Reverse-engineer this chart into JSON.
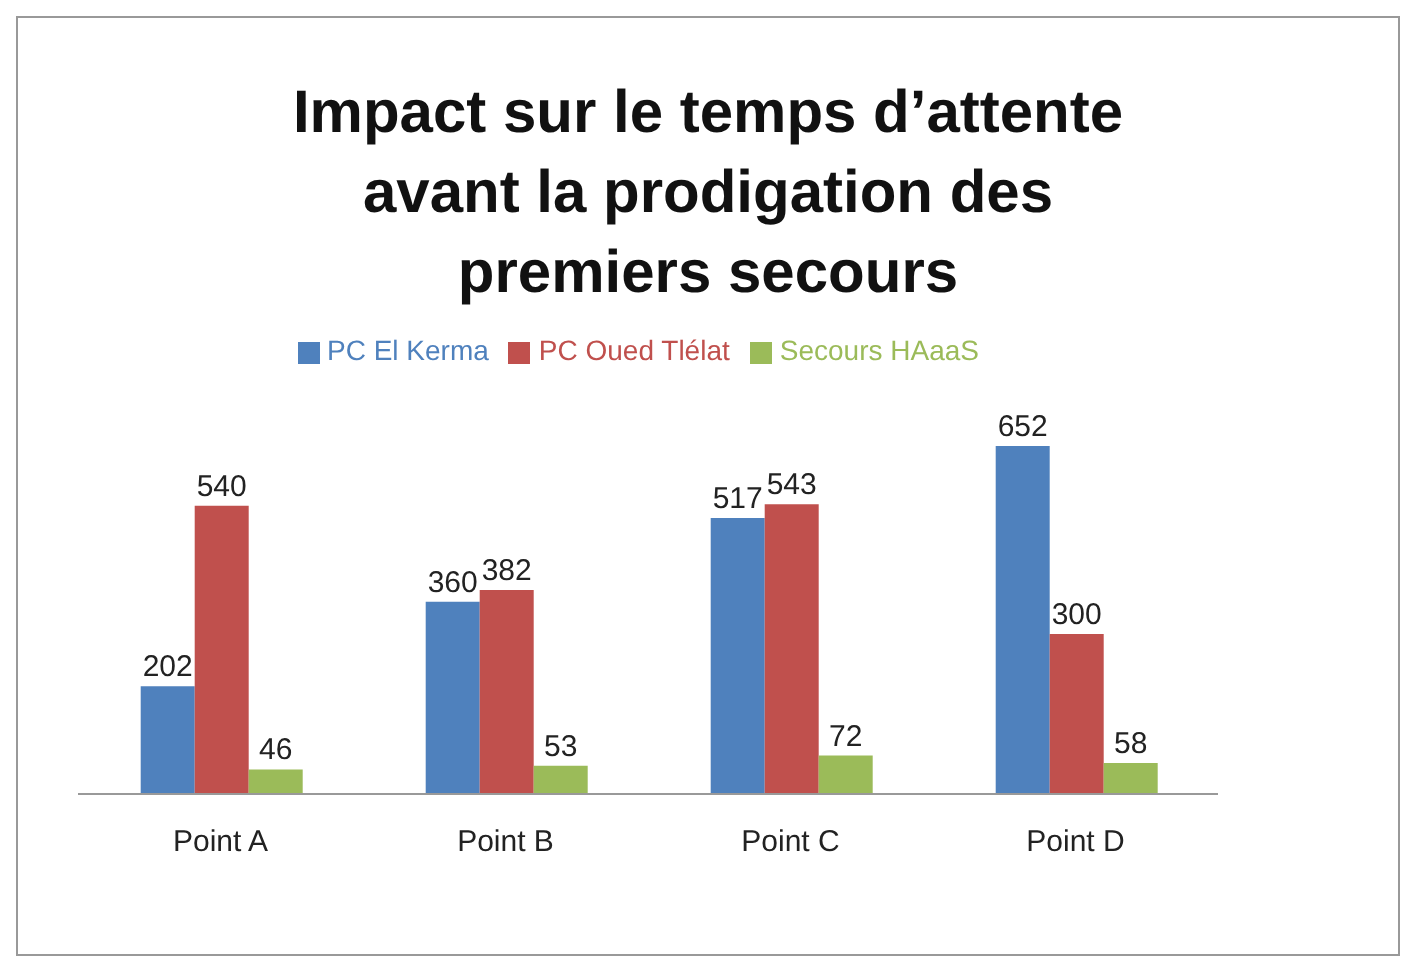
{
  "chart_data": {
    "type": "bar",
    "title": "Impact sur le temps d’attente avant la prodigation des premiers secours",
    "categories": [
      "Point A",
      "Point B",
      "Point C",
      "Point D"
    ],
    "series": [
      {
        "name": "PC El Kerma",
        "color": "#4f81bd",
        "values": [
          202,
          360,
          517,
          652
        ]
      },
      {
        "name": "PC Oued Tlélat",
        "color": "#c0504d",
        "values": [
          540,
          382,
          543,
          300
        ]
      },
      {
        "name": "Secours HAaaS",
        "color": "#9bbb59",
        "values": [
          46,
          53,
          72,
          58
        ]
      }
    ],
    "data_labels": true,
    "legend": "top",
    "grid": false
  }
}
